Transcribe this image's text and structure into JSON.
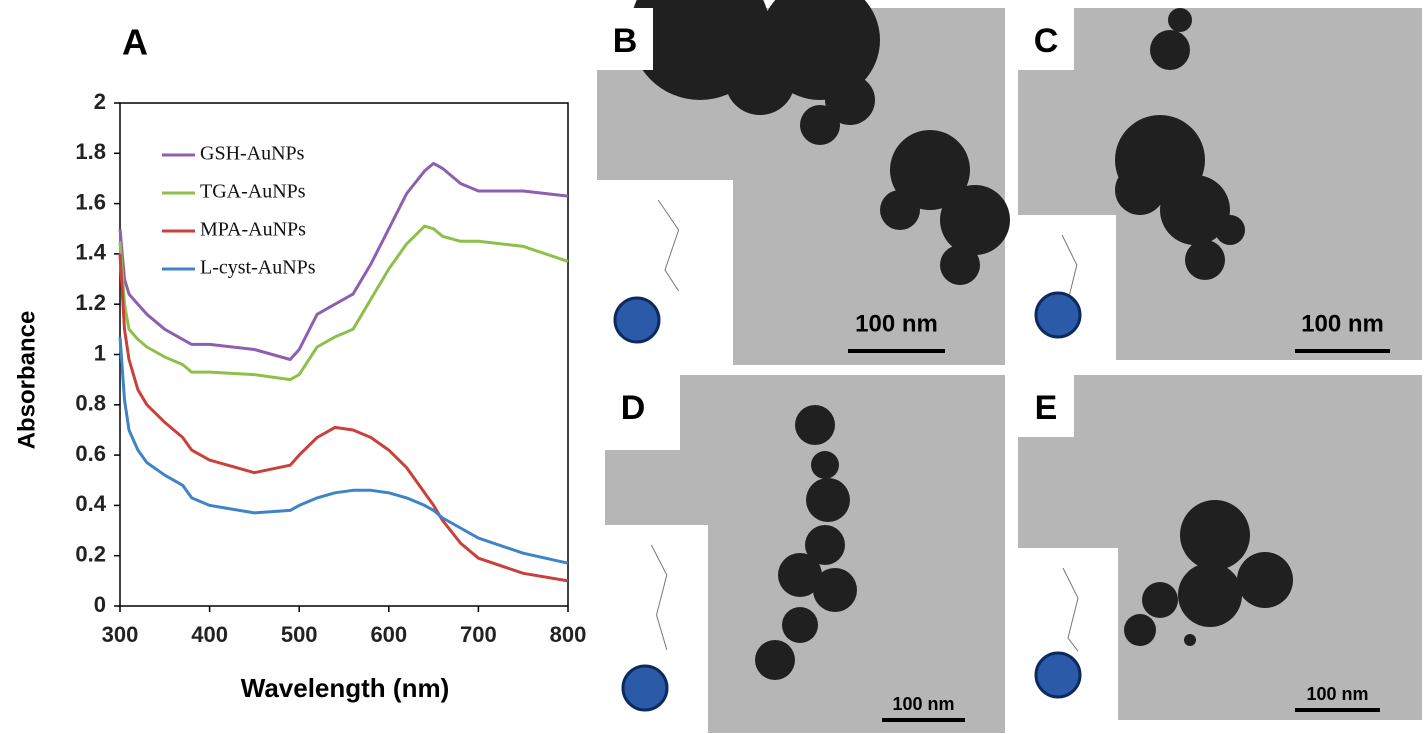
{
  "chart_data": {
    "type": "line",
    "panel_label": "A",
    "x_label": "Wavelength (nm)",
    "y_label": "Absorbance",
    "x": [
      300,
      305,
      310,
      320,
      330,
      350,
      370,
      380,
      400,
      450,
      490,
      500,
      520,
      540,
      560,
      580,
      600,
      620,
      640,
      650,
      660,
      680,
      700,
      750,
      800
    ],
    "series": [
      {
        "name": "GSH-AuNPs",
        "color": "#8e5fb0",
        "values": [
          1.5,
          1.3,
          1.24,
          1.2,
          1.16,
          1.1,
          1.06,
          1.04,
          1.04,
          1.02,
          0.98,
          1.02,
          1.16,
          1.2,
          1.24,
          1.36,
          1.5,
          1.64,
          1.73,
          1.76,
          1.74,
          1.68,
          1.65,
          1.65,
          1.63
        ]
      },
      {
        "name": "TGA-AuNPs",
        "color": "#8dc04a",
        "values": [
          1.45,
          1.2,
          1.1,
          1.06,
          1.03,
          0.99,
          0.96,
          0.93,
          0.93,
          0.92,
          0.9,
          0.92,
          1.03,
          1.07,
          1.1,
          1.22,
          1.34,
          1.44,
          1.51,
          1.5,
          1.47,
          1.45,
          1.45,
          1.43,
          1.37
        ]
      },
      {
        "name": "MPA-AuNPs",
        "color": "#c9413a",
        "values": [
          1.4,
          1.1,
          0.98,
          0.86,
          0.8,
          0.73,
          0.67,
          0.62,
          0.58,
          0.53,
          0.56,
          0.6,
          0.67,
          0.71,
          0.7,
          0.67,
          0.62,
          0.55,
          0.45,
          0.4,
          0.34,
          0.25,
          0.19,
          0.13,
          0.1
        ]
      },
      {
        "name": "L-cyst-AuNPs",
        "color": "#3f83c8",
        "values": [
          1.07,
          0.82,
          0.7,
          0.62,
          0.57,
          0.52,
          0.48,
          0.43,
          0.4,
          0.37,
          0.38,
          0.4,
          0.43,
          0.45,
          0.46,
          0.46,
          0.45,
          0.43,
          0.4,
          0.38,
          0.35,
          0.31,
          0.27,
          0.21,
          0.17
        ]
      }
    ],
    "xlim": [
      300,
      800
    ],
    "ylim": [
      0,
      2
    ],
    "xticks": [
      300,
      400,
      500,
      600,
      700,
      800
    ],
    "yticks": [
      0,
      0.2,
      0.4,
      0.6,
      0.8,
      1,
      1.2,
      1.4,
      1.6,
      1.8,
      2
    ],
    "legend": "upper left"
  },
  "panels": [
    {
      "label": "B",
      "scale_bar": "100 nm"
    },
    {
      "label": "C",
      "scale_bar": "100 nm"
    },
    {
      "label": "D",
      "scale_bar": "100 nm"
    },
    {
      "label": "E",
      "scale_bar": "100 nm"
    }
  ]
}
